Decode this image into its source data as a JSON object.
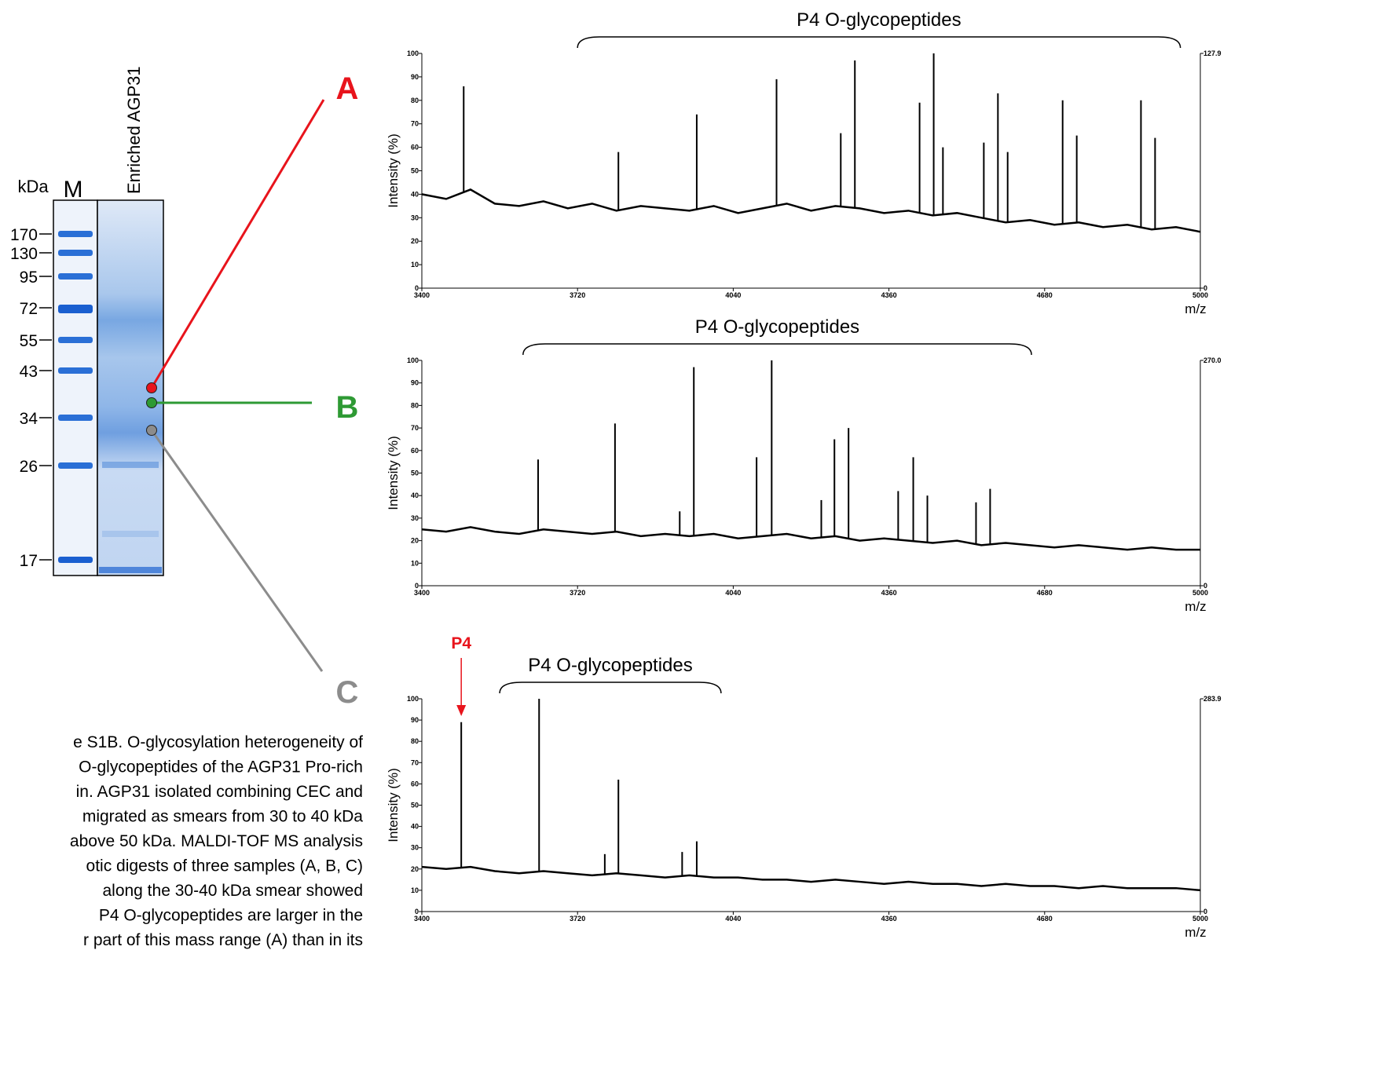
{
  "gel": {
    "unit": "kDa",
    "lane_marker": "M",
    "lane_sample": "Enriched AGP31",
    "markers": [
      170,
      130,
      95,
      72,
      55,
      43,
      34,
      26,
      17
    ]
  },
  "samples": [
    {
      "label": "A",
      "color": "#e8141c"
    },
    {
      "label": "B",
      "color": "#2e9a34"
    },
    {
      "label": "C",
      "color": "#8c8c8c"
    }
  ],
  "caption": [
    "e S1B. O-glycosylation heterogeneity of",
    "O-glycopeptides of the AGP31 Pro-rich",
    "in. AGP31 isolated combining CEC and",
    "migrated as smears from 30 to 40 kDa",
    "above 50 kDa. MALDI-TOF MS analysis",
    "otic digests of three samples (A, B, C)",
    "along the 30-40 kDa smear showed",
    "P4 O-glycopeptides are larger in the",
    "r part of this mass range (A) than in its"
  ],
  "chart_data": [
    {
      "type": "line",
      "title": "P4 O-glycopeptides",
      "bracket": [
        3720,
        4959
      ],
      "y_label": "Intensity (%)",
      "x_label": "m/z",
      "color": "#000000",
      "xlim": [
        3400,
        5000
      ],
      "xticks": [
        3400,
        3720,
        4040,
        4360,
        4680,
        5000
      ],
      "ylim": [
        0,
        100
      ],
      "yticks": [
        0,
        10,
        20,
        30,
        40,
        50,
        60,
        70,
        80,
        90,
        100
      ],
      "y2lim": [
        0,
        127.9
      ],
      "y2ticks": [
        0,
        127.9
      ],
      "x": [
        3400,
        3450,
        3500,
        3550,
        3600,
        3650,
        3700,
        3750,
        3800,
        3850,
        3900,
        3950,
        4000,
        4050,
        4100,
        4150,
        4200,
        4250,
        4300,
        4350,
        4400,
        4450,
        4500,
        4550,
        4600,
        4650,
        4700,
        4750,
        4800,
        4850,
        4900,
        4950,
        5000
      ],
      "values": [
        40,
        38,
        42,
        36,
        35,
        37,
        34,
        36,
        33,
        35,
        34,
        33,
        35,
        32,
        34,
        36,
        33,
        35,
        34,
        32,
        33,
        31,
        32,
        30,
        28,
        29,
        27,
        28,
        26,
        27,
        25,
        26,
        24
      ],
      "peaks": {
        "x": [
          3486,
          3804,
          3965,
          4129,
          4261,
          4290,
          4423,
          4452,
          4471,
          4555,
          4584,
          4604,
          4717,
          4746,
          4878,
          4907
        ],
        "values": [
          86,
          58,
          74,
          89,
          66,
          97,
          79,
          100,
          60,
          62,
          83,
          58,
          80,
          65,
          80,
          64
        ]
      }
    },
    {
      "type": "line",
      "title": "P4 O-glycopeptides",
      "bracket": [
        3608,
        4653
      ],
      "y_label": "Intensity (%)",
      "x_label": "m/z",
      "color": "#000000",
      "xlim": [
        3400,
        5000
      ],
      "xticks": [
        3400,
        3720,
        4040,
        4360,
        4680,
        5000
      ],
      "ylim": [
        0,
        100
      ],
      "yticks": [
        0,
        10,
        20,
        30,
        40,
        50,
        60,
        70,
        80,
        90,
        100
      ],
      "y2lim": [
        0,
        270
      ],
      "y2ticks": [
        0,
        {
          "value": 270,
          "label": "270.0"
        }
      ],
      "x": [
        3400,
        3450,
        3500,
        3550,
        3600,
        3650,
        3700,
        3750,
        3800,
        3850,
        3900,
        3950,
        4000,
        4050,
        4100,
        4150,
        4200,
        4250,
        4300,
        4350,
        4400,
        4450,
        4500,
        4550,
        4600,
        4650,
        4700,
        4750,
        4800,
        4850,
        4900,
        4950,
        5000
      ],
      "values": [
        25,
        24,
        26,
        24,
        23,
        25,
        24,
        23,
        24,
        22,
        23,
        22,
        23,
        21,
        22,
        23,
        21,
        22,
        20,
        21,
        20,
        19,
        20,
        18,
        19,
        18,
        17,
        18,
        17,
        16,
        17,
        16,
        16
      ],
      "peaks": {
        "x": [
          3639,
          3797,
          3930,
          3959,
          4088,
          4119,
          4221,
          4248,
          4277,
          4379,
          4410,
          4439,
          4539,
          4568
        ],
        "values": [
          56,
          72,
          33,
          97,
          57,
          100,
          38,
          65,
          70,
          42,
          57,
          40,
          37,
          43
        ]
      }
    },
    {
      "type": "line",
      "title": "P4 O-glycopeptides",
      "bracket": [
        3560,
        4015
      ],
      "annotation": {
        "text": "P4",
        "x": 3481
      },
      "y_label": "Intensity (%)",
      "x_label": "m/z",
      "color": "#000000",
      "xlim": [
        3400,
        5000
      ],
      "xticks": [
        3400,
        3720,
        4040,
        4360,
        4680,
        5000
      ],
      "ylim": [
        0,
        100
      ],
      "yticks": [
        0,
        10,
        20,
        30,
        40,
        50,
        60,
        70,
        80,
        90,
        100
      ],
      "y2lim": [
        0,
        283.9
      ],
      "y2ticks": [
        0,
        283.9
      ],
      "x": [
        3400,
        3450,
        3500,
        3550,
        3600,
        3650,
        3700,
        3750,
        3800,
        3850,
        3900,
        3950,
        4000,
        4050,
        4100,
        4150,
        4200,
        4250,
        4300,
        4350,
        4400,
        4450,
        4500,
        4550,
        4600,
        4650,
        4700,
        4750,
        4800,
        4850,
        4900,
        4950,
        5000
      ],
      "values": [
        21,
        20,
        21,
        19,
        18,
        19,
        18,
        17,
        18,
        17,
        16,
        17,
        16,
        16,
        15,
        15,
        14,
        15,
        14,
        13,
        14,
        13,
        13,
        12,
        13,
        12,
        12,
        11,
        12,
        11,
        11,
        11,
        10
      ],
      "peaks": {
        "x": [
          3481,
          3641,
          3776,
          3804,
          3935,
          3965
        ],
        "values": [
          89,
          100,
          27,
          62,
          28,
          33
        ]
      }
    }
  ]
}
